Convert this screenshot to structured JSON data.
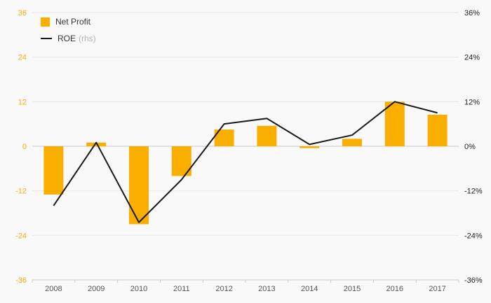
{
  "legend": {
    "net_profit": "Net Profit",
    "roe": "ROE",
    "roe_note": "(rhs)"
  },
  "colors": {
    "bar": "#F9AE00",
    "line": "#1a1a1a",
    "background": "#f9f9f9",
    "grid": "#e7e7e7",
    "zero_line": "#c8c8c8",
    "axis_line": "#cccccc",
    "x_label": "#555555",
    "right_tick": "#222222"
  },
  "chart_data": {
    "type": "combo",
    "categories": [
      "2008",
      "2009",
      "2010",
      "2011",
      "2012",
      "2013",
      "2014",
      "2015",
      "2016",
      "2017"
    ],
    "series": [
      {
        "name": "Net Profit",
        "type": "bar",
        "axis": "left",
        "values": [
          -13,
          1,
          -21,
          -8,
          4.5,
          5.5,
          -0.5,
          2,
          12,
          8.5
        ]
      },
      {
        "name": "ROE",
        "type": "line",
        "axis": "right",
        "values": [
          -16,
          1,
          -20.5,
          -9,
          6,
          7.5,
          0.5,
          3,
          12,
          9
        ]
      }
    ],
    "left_axis": {
      "ticks": [
        36,
        24,
        12,
        0,
        -12,
        -24,
        -36
      ],
      "color": "#F9AE00"
    },
    "right_axis": {
      "tick_labels": [
        "36%",
        "24%",
        "12%",
        "0%",
        "-12%",
        "-24%",
        "-36%"
      ],
      "tick_values": [
        36,
        24,
        12,
        0,
        -12,
        -24,
        -36
      ]
    },
    "ylim_left": [
      -36,
      36
    ],
    "ylim_right": [
      -36,
      36
    ],
    "grid": true,
    "legend_position": "top-left",
    "title": "",
    "xlabel": "",
    "ylabel": ""
  }
}
